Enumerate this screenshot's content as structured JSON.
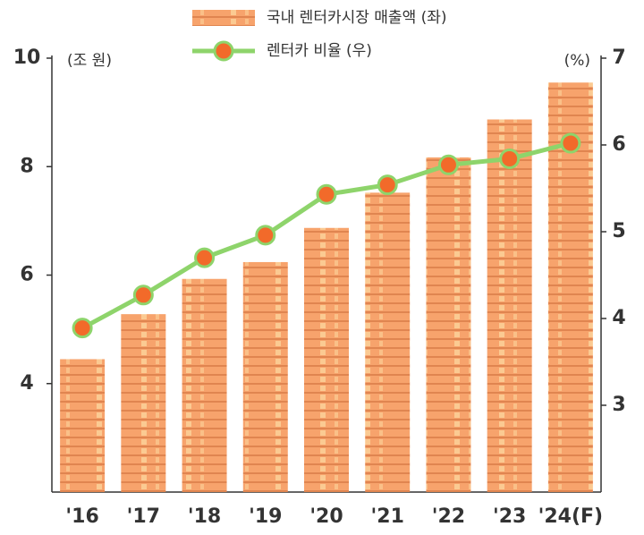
{
  "chart_data": {
    "type": "bar-line",
    "y_unit_label": "(조 원)",
    "y2_unit_label": "(%)",
    "categories": [
      "'16",
      "'17",
      "'18",
      "'19",
      "'20",
      "'21",
      "'22",
      "'23",
      "'24(F)"
    ],
    "series": [
      {
        "name": "국내 렌터카시장 매출액 (좌)",
        "type": "bar",
        "color": "#f7a36c",
        "values": [
          4.45,
          5.28,
          5.93,
          6.24,
          6.87,
          7.52,
          8.17,
          8.87,
          9.55
        ]
      },
      {
        "name": "렌터카 비율 (우)",
        "type": "line",
        "axis": "y2",
        "color": "#8ed46b",
        "marker_color": "#f26a2a",
        "values": [
          3.89,
          4.27,
          4.7,
          4.96,
          5.43,
          5.54,
          5.77,
          5.84,
          6.02
        ]
      }
    ],
    "ylim": [
      2,
      10
    ],
    "yticks": [
      4,
      6,
      8,
      10
    ],
    "y2lim": [
      2,
      7
    ],
    "y2ticks": [
      3,
      4,
      5,
      6,
      7
    ]
  }
}
